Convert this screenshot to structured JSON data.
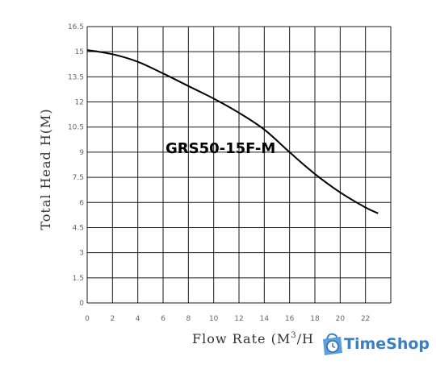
{
  "chart_data": {
    "type": "line",
    "title": "",
    "xlabel": "Flow Rate (M3/H",
    "xlabel_main": "Flow Rate (M",
    "xlabel_sup": "3",
    "xlabel_tail": "/H",
    "ylabel": "Total Head H(M)",
    "xlim": [
      0,
      24
    ],
    "ylim": [
      0,
      16.5
    ],
    "x_ticks": [
      "0",
      "2",
      "4",
      "6",
      "8",
      "10",
      "12",
      "14",
      "16",
      "18",
      "20",
      "22"
    ],
    "y_ticks": [
      "0",
      "1.5",
      "3",
      "4.5",
      "6",
      "7.5",
      "9",
      "10.5",
      "12",
      "13.5",
      "15",
      "16.5"
    ],
    "grid": true,
    "annotation": "GRS50-15F-M",
    "series": [
      {
        "x": [
          0,
          2,
          4,
          6,
          8,
          10,
          12,
          14,
          16,
          18,
          20,
          22,
          23
        ],
        "y": [
          15.1,
          14.85,
          14.4,
          13.7,
          12.95,
          12.2,
          11.35,
          10.35,
          9.0,
          7.7,
          6.6,
          5.7,
          5.35
        ]
      }
    ]
  },
  "watermark": {
    "text": "TimeShop",
    "icon": "clock-bag-icon",
    "color": "#3a7fc1"
  }
}
